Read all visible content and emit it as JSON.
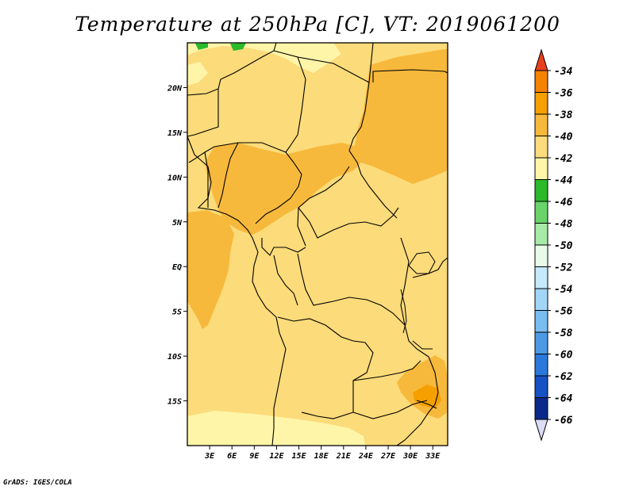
{
  "title": "Temperature at 250hPa [C], VT: 2019061200",
  "credit": "GrADS: IGES/COLA",
  "map": {
    "lat_ticks": [
      "20N",
      "15N",
      "10N",
      "5N",
      "EQ",
      "5S",
      "10S",
      "15S"
    ],
    "lon_ticks": [
      "3E",
      "6E",
      "9E",
      "12E",
      "15E",
      "18E",
      "21E",
      "24E",
      "27E",
      "30E",
      "33E"
    ],
    "lat_values": [
      20,
      15,
      10,
      5,
      0,
      -5,
      -10,
      -15
    ],
    "lon_values": [
      3,
      6,
      9,
      12,
      15,
      18,
      21,
      24,
      27,
      30,
      33
    ],
    "lon_range": [
      0,
      35
    ],
    "lat_range": [
      -20,
      25
    ]
  },
  "colorbar": {
    "labels": [
      "-34",
      "-36",
      "-38",
      "-40",
      "-42",
      "-44",
      "-46",
      "-48",
      "-50",
      "-52",
      "-54",
      "-56",
      "-58",
      "-60",
      "-62",
      "-64",
      "-66"
    ],
    "colors": [
      "#f0501e",
      "#f58200",
      "#f5a000",
      "#f7b93b",
      "#fbdb7a",
      "#fff5a8",
      "#2aba2a",
      "#6ad46a",
      "#a6eaa6",
      "#e8fbe8",
      "#c6e9fb",
      "#a2d6f6",
      "#7abdf0",
      "#4c9ae6",
      "#2a78dc",
      "#1652c4",
      "#0a2a8a",
      "#000a5a"
    ],
    "top_triangle_color": "#e8401c",
    "bottom_triangle_color": "#dcdcf8"
  }
}
